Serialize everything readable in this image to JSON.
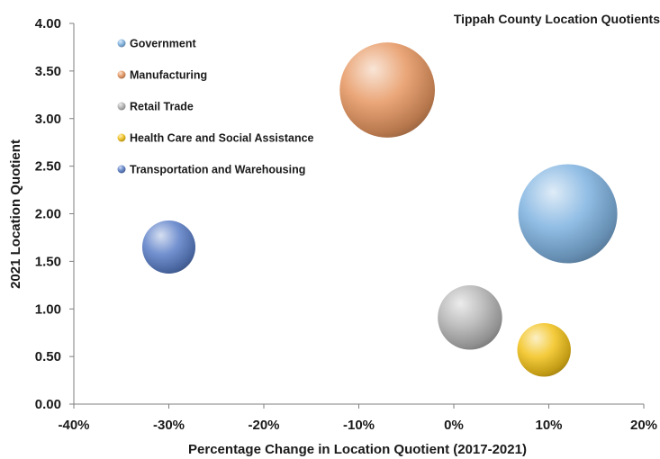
{
  "chart_data": {
    "type": "bubble",
    "title": "Tippah County Location Quotients",
    "xlabel": "Percentage Change in Location Quotient (2017-2021)",
    "ylabel": "2021 Location Quotient",
    "xlim": [
      -40,
      20
    ],
    "ylim": [
      0,
      4
    ],
    "x_ticks": [
      "-40%",
      "-30%",
      "-20%",
      "-10%",
      "0%",
      "10%",
      "20%"
    ],
    "y_ticks": [
      "0.00",
      "0.50",
      "1.00",
      "1.50",
      "2.00",
      "2.50",
      "3.00",
      "3.50",
      "4.00"
    ],
    "grid": false,
    "legend_position": "top-left",
    "series": [
      {
        "name": "Government",
        "x": 12,
        "y": 2.0,
        "size": 2.6,
        "color": "#7fb2e0"
      },
      {
        "name": "Manufacturing",
        "x": -7,
        "y": 3.3,
        "size": 2.4,
        "color": "#e69660"
      },
      {
        "name": "Retail Trade",
        "x": 1.7,
        "y": 0.91,
        "size": 1.1,
        "color": "#b4b4b4"
      },
      {
        "name": "Health Care and Social Assistance",
        "x": 9.5,
        "y": 0.57,
        "size": 0.76,
        "color": "#f2c21a"
      },
      {
        "name": "Transportation and Warehousing",
        "x": -30,
        "y": 1.65,
        "size": 0.75,
        "color": "#5b7fc8"
      }
    ]
  }
}
